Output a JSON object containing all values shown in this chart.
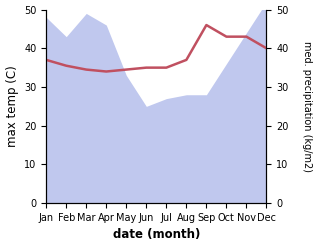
{
  "months": [
    "Jan",
    "Feb",
    "Mar",
    "Apr",
    "May",
    "Jun",
    "Jul",
    "Aug",
    "Sep",
    "Oct",
    "Nov",
    "Dec"
  ],
  "temperature": [
    37,
    35.5,
    34.5,
    34,
    34.5,
    35,
    35,
    37,
    46,
    43,
    43,
    40
  ],
  "precipitation": [
    48,
    43,
    49,
    46,
    33,
    25,
    27,
    28,
    28,
    36,
    44,
    52
  ],
  "temp_color": "#c05060",
  "precip_color_fill": "#c0c8ee",
  "temp_ylim": [
    0,
    50
  ],
  "precip_ylim": [
    0,
    50
  ],
  "xlabel": "date (month)",
  "ylabel_left": "max temp (C)",
  "ylabel_right": "med. precipitation (kg/m2)",
  "yticks": [
    0,
    10,
    20,
    30,
    40,
    50
  ],
  "tick_fontsize": 7,
  "label_fontsize": 8.5
}
